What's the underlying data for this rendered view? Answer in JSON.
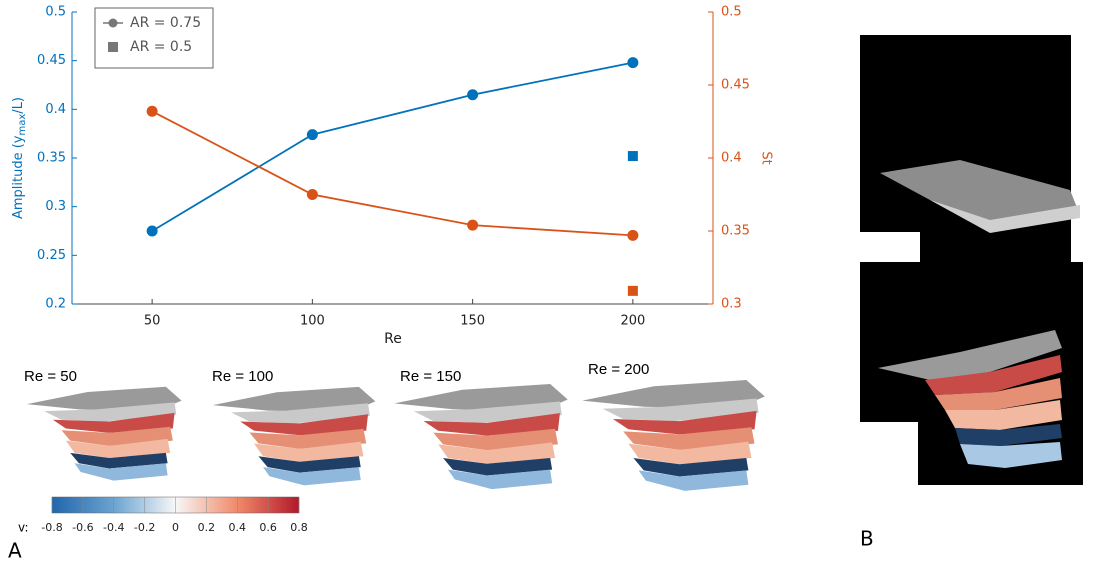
{
  "chart_data": {
    "type": "line",
    "xlabel": "Re",
    "ylabel": [
      "Amplitude (y",
      "max",
      "/L)"
    ],
    "y2label": "St",
    "color": "#0072bd",
    "y2color": "#d95319",
    "legend_color": "#777777",
    "xlim": [
      25,
      225
    ],
    "xticks": [
      50,
      100,
      150,
      200
    ],
    "ylim": [
      0.2,
      0.5
    ],
    "yticks": [
      0.2,
      0.25,
      0.3,
      0.35,
      0.4,
      0.45,
      0.5
    ],
    "y2lim": [
      0.3,
      0.5
    ],
    "y2ticks": [
      0.3,
      0.35,
      0.4,
      0.45,
      0.5
    ],
    "legend": "upper left",
    "series": [
      {
        "name": "AR = 0.75",
        "marker": "circle",
        "line": true,
        "x": [
          50,
          100,
          150,
          200
        ],
        "values": [
          0.275,
          0.374,
          0.415,
          0.448
        ],
        "y2_values": [
          0.432,
          0.375,
          0.354,
          0.347
        ]
      },
      {
        "name": "AR = 0.5",
        "marker": "square",
        "line": false,
        "x": [
          200
        ],
        "values": [
          0.352
        ],
        "y2_values": [
          0.309
        ]
      }
    ]
  },
  "renders": [
    "Re = 50",
    "Re = 100",
    "Re = 150",
    "Re = 200"
  ],
  "colorbar": {
    "label": "v:",
    "ticks": [
      -0.8,
      -0.6,
      -0.4,
      -0.2,
      0,
      0.2,
      0.4,
      0.6,
      0.8
    ]
  },
  "panel_labels": [
    "A",
    "B"
  ]
}
